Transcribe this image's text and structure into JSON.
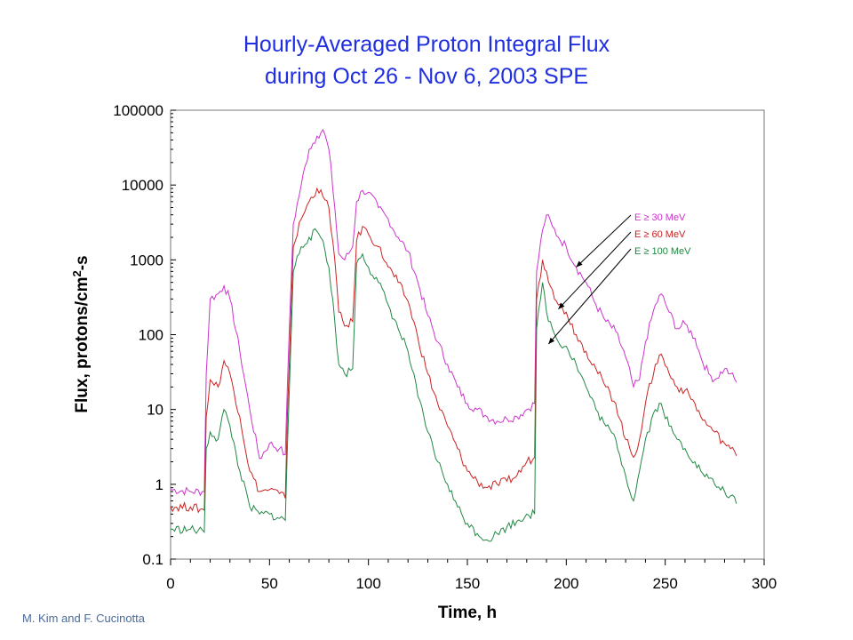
{
  "title_line1": "Hourly-Averaged Proton Integral Flux",
  "title_line2": "during Oct 26 - Nov 6, 2003 SPE",
  "credit": "M. Kim and F. Cucinotta",
  "chart_data": {
    "type": "line",
    "xlabel": "Time, h",
    "ylabel_main": "Flux, protons/cm",
    "ylabel_sup": "2",
    "ylabel_tail": "-s",
    "xlim": [
      0,
      300
    ],
    "ylim": [
      0.1,
      100000
    ],
    "yscale": "log",
    "grid": false,
    "legend_placement": "upper-right, with arrows pointing to curves",
    "x_ticks": [
      "0",
      "50",
      "100",
      "150",
      "200",
      "250",
      "300"
    ],
    "y_ticks": [
      "0.1",
      "1",
      "10",
      "100",
      "1000",
      "10000",
      "100000"
    ],
    "series": [
      {
        "name": "E ≥ 30 MeV",
        "color": "#cc33cc",
        "points": [
          [
            0,
            0.85
          ],
          [
            10,
            0.8
          ],
          [
            17,
            0.8
          ],
          [
            18,
            30
          ],
          [
            20,
            300
          ],
          [
            24,
            350
          ],
          [
            27,
            450
          ],
          [
            30,
            300
          ],
          [
            35,
            60
          ],
          [
            40,
            10
          ],
          [
            45,
            2.2
          ],
          [
            50,
            3.5
          ],
          [
            55,
            3
          ],
          [
            58,
            2.5
          ],
          [
            59,
            20
          ],
          [
            62,
            3000
          ],
          [
            66,
            10000
          ],
          [
            70,
            30000
          ],
          [
            74,
            45000
          ],
          [
            77,
            55000
          ],
          [
            80,
            30000
          ],
          [
            83,
            5000
          ],
          [
            85,
            1200
          ],
          [
            88,
            1000
          ],
          [
            92,
            1500
          ],
          [
            94,
            6000
          ],
          [
            97,
            8500
          ],
          [
            100,
            8000
          ],
          [
            105,
            5000
          ],
          [
            110,
            3500
          ],
          [
            115,
            2000
          ],
          [
            120,
            1300
          ],
          [
            125,
            500
          ],
          [
            130,
            180
          ],
          [
            135,
            80
          ],
          [
            140,
            40
          ],
          [
            145,
            20
          ],
          [
            150,
            12
          ],
          [
            155,
            10
          ],
          [
            160,
            8
          ],
          [
            165,
            7
          ],
          [
            170,
            7.5
          ],
          [
            175,
            8
          ],
          [
            180,
            10
          ],
          [
            184,
            12
          ],
          [
            185,
            700
          ],
          [
            188,
            2500
          ],
          [
            190,
            4000
          ],
          [
            193,
            2800
          ],
          [
            196,
            2000
          ],
          [
            200,
            1500
          ],
          [
            205,
            800
          ],
          [
            210,
            500
          ],
          [
            215,
            250
          ],
          [
            220,
            150
          ],
          [
            225,
            110
          ],
          [
            230,
            50
          ],
          [
            234,
            20
          ],
          [
            237,
            25
          ],
          [
            240,
            80
          ],
          [
            245,
            250
          ],
          [
            248,
            350
          ],
          [
            252,
            200
          ],
          [
            256,
            120
          ],
          [
            260,
            140
          ],
          [
            265,
            90
          ],
          [
            268,
            50
          ],
          [
            272,
            30
          ],
          [
            275,
            25
          ],
          [
            280,
            35
          ],
          [
            283,
            30
          ],
          [
            286,
            23
          ]
        ]
      },
      {
        "name": "E ≥ 60 MeV",
        "color": "#cc2222",
        "points": [
          [
            0,
            0.5
          ],
          [
            10,
            0.5
          ],
          [
            17,
            0.45
          ],
          [
            18,
            8
          ],
          [
            20,
            25
          ],
          [
            24,
            20
          ],
          [
            27,
            45
          ],
          [
            30,
            30
          ],
          [
            35,
            8
          ],
          [
            40,
            1.5
          ],
          [
            45,
            0.8
          ],
          [
            50,
            0.85
          ],
          [
            55,
            0.75
          ],
          [
            58,
            0.65
          ],
          [
            59,
            8
          ],
          [
            62,
            1500
          ],
          [
            66,
            3500
          ],
          [
            70,
            6000
          ],
          [
            74,
            9000
          ],
          [
            77,
            7000
          ],
          [
            80,
            5000
          ],
          [
            83,
            1000
          ],
          [
            85,
            200
          ],
          [
            88,
            130
          ],
          [
            92,
            150
          ],
          [
            94,
            1800
          ],
          [
            97,
            2800
          ],
          [
            100,
            2200
          ],
          [
            105,
            1500
          ],
          [
            110,
            800
          ],
          [
            115,
            500
          ],
          [
            120,
            280
          ],
          [
            125,
            90
          ],
          [
            130,
            30
          ],
          [
            135,
            12
          ],
          [
            140,
            6
          ],
          [
            145,
            3
          ],
          [
            150,
            1.5
          ],
          [
            155,
            1.1
          ],
          [
            160,
            0.9
          ],
          [
            165,
            1.0
          ],
          [
            170,
            1.1
          ],
          [
            175,
            1.3
          ],
          [
            180,
            2.0
          ],
          [
            184,
            2.3
          ],
          [
            185,
            300
          ],
          [
            188,
            1000
          ],
          [
            190,
            700
          ],
          [
            193,
            400
          ],
          [
            196,
            250
          ],
          [
            200,
            200
          ],
          [
            205,
            100
          ],
          [
            210,
            60
          ],
          [
            215,
            35
          ],
          [
            220,
            20
          ],
          [
            225,
            12
          ],
          [
            230,
            4
          ],
          [
            234,
            2.3
          ],
          [
            237,
            4
          ],
          [
            240,
            12
          ],
          [
            245,
            40
          ],
          [
            248,
            55
          ],
          [
            252,
            30
          ],
          [
            256,
            20
          ],
          [
            260,
            18
          ],
          [
            265,
            12
          ],
          [
            268,
            8
          ],
          [
            272,
            6
          ],
          [
            275,
            5
          ],
          [
            280,
            3.5
          ],
          [
            283,
            3
          ],
          [
            286,
            2.4
          ]
        ]
      },
      {
        "name": "E ≥ 100 MeV",
        "color": "#228844",
        "points": [
          [
            0,
            0.25
          ],
          [
            10,
            0.25
          ],
          [
            17,
            0.23
          ],
          [
            18,
            3
          ],
          [
            20,
            5
          ],
          [
            24,
            4
          ],
          [
            27,
            10
          ],
          [
            30,
            6
          ],
          [
            35,
            1.5
          ],
          [
            40,
            0.5
          ],
          [
            45,
            0.4
          ],
          [
            50,
            0.4
          ],
          [
            55,
            0.35
          ],
          [
            58,
            0.33
          ],
          [
            59,
            3
          ],
          [
            62,
            700
          ],
          [
            66,
            1500
          ],
          [
            70,
            2000
          ],
          [
            74,
            2400
          ],
          [
            77,
            1800
          ],
          [
            80,
            800
          ],
          [
            83,
            150
          ],
          [
            85,
            40
          ],
          [
            88,
            30
          ],
          [
            92,
            35
          ],
          [
            94,
            900
          ],
          [
            97,
            1200
          ],
          [
            100,
            800
          ],
          [
            105,
            500
          ],
          [
            110,
            250
          ],
          [
            115,
            120
          ],
          [
            120,
            60
          ],
          [
            125,
            15
          ],
          [
            130,
            5
          ],
          [
            135,
            2
          ],
          [
            140,
            1
          ],
          [
            145,
            0.5
          ],
          [
            150,
            0.3
          ],
          [
            155,
            0.22
          ],
          [
            160,
            0.18
          ],
          [
            165,
            0.22
          ],
          [
            170,
            0.27
          ],
          [
            175,
            0.32
          ],
          [
            180,
            0.4
          ],
          [
            184,
            0.4
          ],
          [
            185,
            120
          ],
          [
            188,
            500
          ],
          [
            190,
            200
          ],
          [
            193,
            120
          ],
          [
            196,
            80
          ],
          [
            200,
            70
          ],
          [
            205,
            40
          ],
          [
            210,
            20
          ],
          [
            215,
            10
          ],
          [
            220,
            6
          ],
          [
            225,
            4
          ],
          [
            230,
            1.3
          ],
          [
            234,
            0.6
          ],
          [
            237,
            1.5
          ],
          [
            240,
            4
          ],
          [
            245,
            10
          ],
          [
            248,
            12
          ],
          [
            252,
            6
          ],
          [
            256,
            4
          ],
          [
            260,
            3
          ],
          [
            265,
            2
          ],
          [
            268,
            1.5
          ],
          [
            272,
            1.2
          ],
          [
            275,
            1.0
          ],
          [
            280,
            0.8
          ],
          [
            283,
            0.7
          ],
          [
            286,
            0.55
          ]
        ]
      }
    ]
  }
}
